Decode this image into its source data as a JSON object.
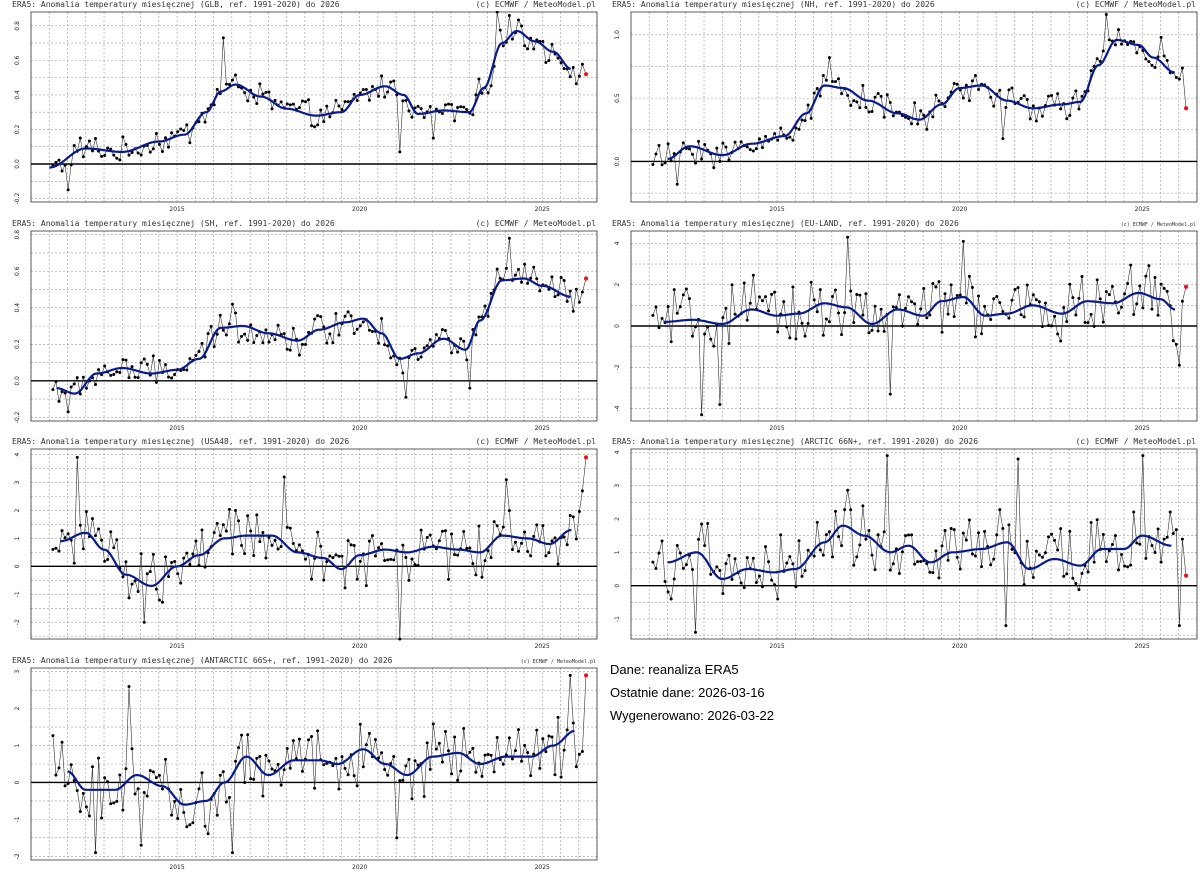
{
  "chart_data": [
    {
      "type": "line",
      "title": "ERA5: Anomalia temperatury miesięcznej (GLB, ref. 1991-2020) do 2026",
      "credit": "(c) ECMWF / MeteoModel.pl",
      "x_ticks": [
        "2015",
        "2020",
        "2025"
      ],
      "x_range": [
        2011.0,
        2026.5
      ],
      "ylim": [
        -0.22,
        0.88
      ],
      "y_ticks": [
        -0.2,
        0.0,
        0.2,
        0.4,
        0.6,
        0.8
      ],
      "y_tick_labels": [
        "-0.2",
        "0.0",
        "0.2",
        "0.4",
        "0.6",
        "0.8"
      ],
      "smooth_knots": [
        [
          2011.5,
          -0.02
        ],
        [
          2012.5,
          0.09
        ],
        [
          2013.5,
          0.07
        ],
        [
          2014.5,
          0.13
        ],
        [
          2015.2,
          0.17
        ],
        [
          2015.8,
          0.3
        ],
        [
          2016.2,
          0.42
        ],
        [
          2016.6,
          0.46
        ],
        [
          2017.3,
          0.39
        ],
        [
          2018.0,
          0.32
        ],
        [
          2018.8,
          0.28
        ],
        [
          2019.5,
          0.3
        ],
        [
          2020.0,
          0.4
        ],
        [
          2020.7,
          0.45
        ],
        [
          2021.2,
          0.4
        ],
        [
          2021.6,
          0.29
        ],
        [
          2022.3,
          0.31
        ],
        [
          2023.0,
          0.3
        ],
        [
          2023.4,
          0.44
        ],
        [
          2023.9,
          0.7
        ],
        [
          2024.3,
          0.77
        ],
        [
          2024.8,
          0.71
        ],
        [
          2025.3,
          0.65
        ],
        [
          2025.8,
          0.55
        ]
      ],
      "jitter": 0.06,
      "outliers": [
        [
          2023.8,
          0.88
        ],
        [
          2024.1,
          0.86
        ],
        [
          2016.3,
          0.73
        ],
        [
          2012.0,
          -0.15
        ],
        [
          2021.1,
          0.07
        ],
        [
          2022.0,
          0.15
        ]
      ],
      "last_point": [
        2026.2,
        0.52
      ]
    },
    {
      "type": "line",
      "title": "ERA5: Anomalia temperatury miesięcznej (NH, ref. 1991-2020) do 2026",
      "credit": "(c) ECMWF / MeteoModel.pl",
      "x_ticks": [
        "2015",
        "2020",
        "2025"
      ],
      "x_range": [
        2011.0,
        2026.5
      ],
      "ylim": [
        -0.32,
        1.18
      ],
      "y_ticks": [
        0.0,
        0.5,
        1.0
      ],
      "y_tick_labels": [
        "0.0",
        "0.5",
        "1.0"
      ],
      "smooth_knots": [
        [
          2012.0,
          0.02
        ],
        [
          2012.6,
          0.12
        ],
        [
          2013.5,
          0.05
        ],
        [
          2014.3,
          0.14
        ],
        [
          2015.2,
          0.2
        ],
        [
          2015.8,
          0.38
        ],
        [
          2016.3,
          0.6
        ],
        [
          2016.8,
          0.58
        ],
        [
          2017.5,
          0.48
        ],
        [
          2018.3,
          0.38
        ],
        [
          2018.9,
          0.33
        ],
        [
          2019.5,
          0.45
        ],
        [
          2020.0,
          0.58
        ],
        [
          2020.6,
          0.6
        ],
        [
          2021.3,
          0.48
        ],
        [
          2022.0,
          0.42
        ],
        [
          2022.8,
          0.45
        ],
        [
          2023.3,
          0.47
        ],
        [
          2023.8,
          0.76
        ],
        [
          2024.3,
          0.96
        ],
        [
          2024.9,
          0.92
        ],
        [
          2025.3,
          0.82
        ],
        [
          2025.9,
          0.7
        ]
      ],
      "jitter": 0.09,
      "outliers": [
        [
          2024.0,
          1.16
        ],
        [
          2016.4,
          0.82
        ],
        [
          2012.3,
          -0.18
        ],
        [
          2013.3,
          -0.05
        ],
        [
          2021.2,
          0.18
        ],
        [
          2025.5,
          0.98
        ]
      ],
      "last_point": [
        2026.2,
        0.42
      ]
    },
    {
      "type": "line",
      "title": "ERA5: Anomalia temperatury miesięcznej (SH, ref. 1991-2020) do 2026",
      "credit": "(c) ECMWF / MeteoModel.pl",
      "x_ticks": [
        "2015",
        "2020",
        "2025"
      ],
      "x_range": [
        2011.0,
        2026.5
      ],
      "ylim": [
        -0.22,
        0.82
      ],
      "y_ticks": [
        -0.2,
        0.0,
        0.2,
        0.4,
        0.6,
        0.8
      ],
      "y_tick_labels": [
        "-0.2",
        "0.0",
        "0.2",
        "0.4",
        "0.6",
        "0.8"
      ],
      "smooth_knots": [
        [
          2011.7,
          -0.04
        ],
        [
          2012.2,
          -0.07
        ],
        [
          2012.8,
          0.04
        ],
        [
          2013.5,
          0.07
        ],
        [
          2014.3,
          0.04
        ],
        [
          2015.0,
          0.06
        ],
        [
          2015.6,
          0.12
        ],
        [
          2016.2,
          0.29
        ],
        [
          2016.8,
          0.3
        ],
        [
          2017.5,
          0.26
        ],
        [
          2018.3,
          0.22
        ],
        [
          2018.9,
          0.28
        ],
        [
          2019.6,
          0.32
        ],
        [
          2020.1,
          0.34
        ],
        [
          2020.6,
          0.26
        ],
        [
          2021.1,
          0.12
        ],
        [
          2021.6,
          0.15
        ],
        [
          2022.3,
          0.23
        ],
        [
          2022.9,
          0.17
        ],
        [
          2023.3,
          0.33
        ],
        [
          2023.9,
          0.55
        ],
        [
          2024.5,
          0.56
        ],
        [
          2025.0,
          0.52
        ],
        [
          2025.8,
          0.46
        ]
      ],
      "jitter": 0.07,
      "outliers": [
        [
          2024.1,
          0.78
        ],
        [
          2012.0,
          -0.17
        ],
        [
          2021.3,
          -0.09
        ],
        [
          2016.5,
          0.42
        ],
        [
          2023.0,
          -0.04
        ]
      ],
      "last_point": [
        2026.2,
        0.56
      ]
    },
    {
      "type": "line",
      "title": "ERA5: Anomalia temperatury miesięcznej (EU-LAND, ref. 1991-2020) do 2026",
      "credit": "(c) ECMWF / MeteoModel.pl",
      "x_ticks": [
        "2015",
        "2020",
        "2025"
      ],
      "x_range": [
        2011.0,
        2026.5
      ],
      "ylim": [
        -4.6,
        4.6
      ],
      "y_ticks": [
        -4,
        -2,
        0,
        2,
        4
      ],
      "y_tick_labels": [
        "-4",
        "-2",
        "0",
        "2",
        "4"
      ],
      "smooth_knots": [
        [
          2011.9,
          0.2
        ],
        [
          2012.7,
          0.3
        ],
        [
          2013.5,
          0.1
        ],
        [
          2014.3,
          0.8
        ],
        [
          2015.0,
          0.5
        ],
        [
          2015.6,
          0.6
        ],
        [
          2016.3,
          1.1
        ],
        [
          2016.9,
          0.9
        ],
        [
          2017.6,
          0.1
        ],
        [
          2018.3,
          0.8
        ],
        [
          2019.0,
          0.5
        ],
        [
          2019.5,
          1.2
        ],
        [
          2020.1,
          1.4
        ],
        [
          2020.7,
          0.5
        ],
        [
          2021.3,
          0.6
        ],
        [
          2022.0,
          1.0
        ],
        [
          2022.8,
          0.6
        ],
        [
          2023.5,
          1.2
        ],
        [
          2024.2,
          1.1
        ],
        [
          2024.9,
          1.6
        ],
        [
          2025.5,
          1.3
        ],
        [
          2025.9,
          0.8
        ]
      ],
      "jitter": 1.2,
      "outliers": [
        [
          2012.9,
          -4.3
        ],
        [
          2013.4,
          -3.8
        ],
        [
          2016.9,
          4.3
        ],
        [
          2020.1,
          4.1
        ],
        [
          2018.1,
          -3.3
        ],
        [
          2026.0,
          -1.9
        ]
      ],
      "last_point": [
        2026.2,
        1.9
      ]
    },
    {
      "type": "line",
      "title": "ERA5: Anomalia temperatury miesięcznej (USA48, ref. 1991-2020) do 2026",
      "credit": "(c) ECMWF / MeteoModel.pl",
      "x_ticks": [
        "2015",
        "2020",
        "2025"
      ],
      "x_range": [
        2011.0,
        2026.5
      ],
      "ylim": [
        -2.6,
        4.2
      ],
      "y_ticks": [
        -2,
        -1,
        0,
        1,
        2,
        3,
        4
      ],
      "y_tick_labels": [
        "-2",
        "-1",
        "0",
        "1",
        "2",
        "3",
        "4"
      ],
      "smooth_knots": [
        [
          2011.8,
          0.9
        ],
        [
          2012.5,
          1.2
        ],
        [
          2013.0,
          0.6
        ],
        [
          2013.6,
          -0.3
        ],
        [
          2014.3,
          -0.7
        ],
        [
          2015.0,
          0.0
        ],
        [
          2015.6,
          0.4
        ],
        [
          2016.3,
          1.0
        ],
        [
          2016.9,
          1.1
        ],
        [
          2017.6,
          1.1
        ],
        [
          2018.3,
          0.5
        ],
        [
          2019.0,
          0.3
        ],
        [
          2019.5,
          -0.1
        ],
        [
          2020.0,
          0.4
        ],
        [
          2020.7,
          0.6
        ],
        [
          2021.3,
          0.5
        ],
        [
          2022.0,
          0.7
        ],
        [
          2022.7,
          0.6
        ],
        [
          2023.3,
          0.5
        ],
        [
          2023.9,
          1.1
        ],
        [
          2024.6,
          1.0
        ],
        [
          2025.2,
          0.8
        ],
        [
          2025.8,
          1.3
        ]
      ],
      "jitter": 0.8,
      "outliers": [
        [
          2012.3,
          3.9
        ],
        [
          2014.1,
          -2.0
        ],
        [
          2017.9,
          3.2
        ],
        [
          2021.1,
          -2.6
        ],
        [
          2024.0,
          3.1
        ],
        [
          2026.1,
          2.7
        ]
      ],
      "last_point": [
        2026.2,
        3.9
      ]
    },
    {
      "type": "line",
      "title": "ERA5: Anomalia temperatury miesięcznej (ARCTIC 66N+, ref. 1991-2020) do 2026",
      "credit": "(c) ECMWF / MeteoModel.pl",
      "x_ticks": [
        "2015",
        "2020",
        "2025"
      ],
      "x_range": [
        2011.0,
        2026.5
      ],
      "ylim": [
        -1.6,
        4.1
      ],
      "y_ticks": [
        -1,
        0,
        1,
        2,
        3,
        4
      ],
      "y_tick_labels": [
        "-1",
        "0",
        "1",
        "2",
        "3",
        "4"
      ],
      "smooth_knots": [
        [
          2012.0,
          0.7
        ],
        [
          2012.8,
          1.0
        ],
        [
          2013.5,
          0.2
        ],
        [
          2014.2,
          0.5
        ],
        [
          2014.9,
          0.4
        ],
        [
          2015.5,
          0.5
        ],
        [
          2016.3,
          1.3
        ],
        [
          2016.8,
          1.8
        ],
        [
          2017.4,
          1.5
        ],
        [
          2018.1,
          1.0
        ],
        [
          2018.6,
          1.2
        ],
        [
          2019.2,
          0.7
        ],
        [
          2019.8,
          1.0
        ],
        [
          2020.6,
          1.1
        ],
        [
          2021.3,
          1.3
        ],
        [
          2021.9,
          0.5
        ],
        [
          2022.6,
          0.8
        ],
        [
          2023.3,
          0.6
        ],
        [
          2023.9,
          1.1
        ],
        [
          2024.5,
          1.1
        ],
        [
          2025.0,
          1.5
        ],
        [
          2025.8,
          1.2
        ]
      ],
      "jitter": 0.8,
      "outliers": [
        [
          2012.8,
          -1.4
        ],
        [
          2018.0,
          3.9
        ],
        [
          2021.6,
          3.8
        ],
        [
          2025.0,
          3.9
        ],
        [
          2021.3,
          -1.2
        ],
        [
          2026.0,
          -1.2
        ]
      ],
      "last_point": [
        2026.2,
        0.3
      ]
    },
    {
      "type": "line",
      "title": "ERA5: Anomalia temperatury miesięcznej (ANTARCTIC 66S+, ref. 1991-2020) do 2026",
      "credit": "(c) ECMWF / MeteoModel.pl",
      "x_ticks": [
        "2015",
        "2020",
        "2025"
      ],
      "x_range": [
        2011.0,
        2026.5
      ],
      "ylim": [
        -2.1,
        3.1
      ],
      "y_ticks": [
        -2,
        -1,
        0,
        1,
        2,
        3
      ],
      "y_tick_labels": [
        "-2",
        "-1",
        "0",
        "1",
        "2",
        "3"
      ],
      "smooth_knots": [
        [
          2012.0,
          0.3
        ],
        [
          2012.5,
          -0.2
        ],
        [
          2013.3,
          -0.2
        ],
        [
          2013.9,
          0.2
        ],
        [
          2014.6,
          -0.1
        ],
        [
          2015.2,
          -0.6
        ],
        [
          2015.8,
          -0.5
        ],
        [
          2016.3,
          0.0
        ],
        [
          2016.9,
          0.7
        ],
        [
          2017.5,
          0.2
        ],
        [
          2018.2,
          0.6
        ],
        [
          2018.9,
          0.6
        ],
        [
          2019.4,
          0.5
        ],
        [
          2020.1,
          0.9
        ],
        [
          2020.7,
          0.5
        ],
        [
          2021.3,
          0.2
        ],
        [
          2022.0,
          0.7
        ],
        [
          2022.7,
          0.8
        ],
        [
          2023.3,
          0.5
        ],
        [
          2024.0,
          0.7
        ],
        [
          2024.7,
          0.7
        ],
        [
          2025.3,
          1.0
        ],
        [
          2025.9,
          1.4
        ]
      ],
      "jitter": 0.7,
      "outliers": [
        [
          2016.5,
          -1.9
        ],
        [
          2012.8,
          -1.9
        ],
        [
          2025.8,
          2.9
        ],
        [
          2014.0,
          -1.7
        ],
        [
          2021.0,
          -1.5
        ],
        [
          2013.7,
          2.6
        ]
      ],
      "last_point": [
        2026.2,
        2.9
      ]
    }
  ],
  "info": {
    "source": "Dane: reanaliza ERA5",
    "last_data": "Ostatnie dane: 2026-03-16",
    "generated": "Wygenerowano: 2026-03-22"
  }
}
